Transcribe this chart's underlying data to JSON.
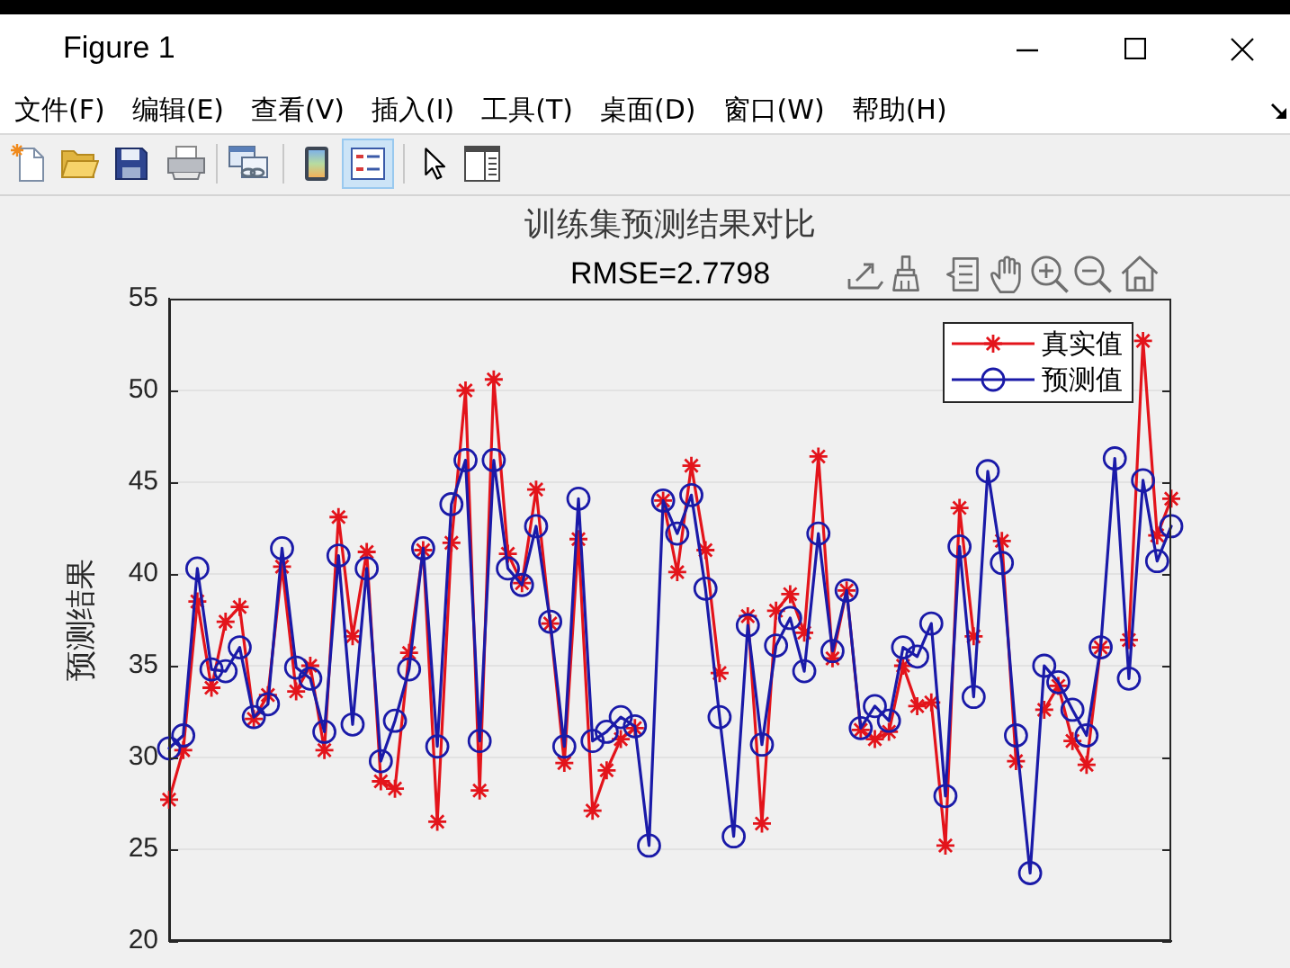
{
  "chart_data": {
    "type": "line",
    "title": "训练集预测结果对比",
    "subtitle": "RMSE=2.7798",
    "ylabel": "预测结果",
    "annotations": [
      "Figure 1",
      "文件(F)",
      "编辑(E)",
      "查看(V)",
      "插入(I)",
      "工具(T)",
      "桌面(D)",
      "窗口(W)",
      "帮助(H)"
    ],
    "categories": [
      null,
      null,
      null,
      null,
      null,
      null,
      null,
      null,
      null,
      null,
      null,
      null,
      null,
      null,
      null,
      null,
      null,
      null,
      null,
      null,
      null,
      null,
      null,
      null,
      null,
      null,
      null,
      null,
      null,
      null,
      null,
      null,
      null,
      null,
      null,
      null,
      null,
      null,
      null,
      null,
      null,
      null,
      null,
      null,
      null,
      null,
      null,
      null,
      null,
      null,
      null,
      null,
      null,
      null,
      null,
      null,
      null,
      null,
      null,
      null,
      null,
      null,
      null,
      null,
      null,
      null,
      null,
      null,
      null,
      null,
      null,
      null
    ],
    "series": [
      {
        "name": "真实值",
        "color": "#e3141b",
        "marker": "cross",
        "values": [
          27.7,
          30.4,
          38.5,
          33.8,
          37.4,
          38.2,
          32.1,
          33.4,
          40.4,
          33.6,
          35,
          30.4,
          43.1,
          36.6,
          41.2,
          28.7,
          28.3,
          35.7,
          41.3,
          26.5,
          41.7,
          50,
          28.2,
          50.6,
          41.1,
          39.5,
          44.6,
          37.3,
          29.7,
          41.9,
          27.1,
          29.3,
          31,
          31.6,
          null,
          44,
          40.1,
          45.9,
          41.3,
          34.6,
          null,
          37.7,
          26.4,
          38,
          38.9,
          36.8,
          46.4,
          35.4,
          39.1,
          31.5,
          31,
          31.4,
          35,
          32.8,
          33,
          25.2,
          43.6,
          36.6,
          null,
          41.8,
          29.8,
          null,
          32.6,
          33.9,
          30.9,
          29.6,
          36,
          null,
          36.4,
          52.7,
          42.1,
          44.1
        ]
      },
      {
        "name": "预测值",
        "color": "#1a1aa8",
        "marker": "circle",
        "values": [
          30.5,
          31.2,
          40.3,
          34.8,
          34.7,
          36,
          32.2,
          32.9,
          41.4,
          34.9,
          34.3,
          31.4,
          41,
          31.8,
          40.3,
          29.8,
          32,
          34.8,
          41.4,
          30.6,
          43.8,
          46.2,
          30.9,
          46.2,
          40.3,
          39.4,
          42.6,
          37.4,
          30.6,
          44.1,
          30.9,
          31.4,
          32.2,
          31.7,
          25.2,
          44,
          42.2,
          44.3,
          39.2,
          32.2,
          25.7,
          37.2,
          30.7,
          36.1,
          37.6,
          34.7,
          42.2,
          35.8,
          39.1,
          31.6,
          32.8,
          32,
          36,
          35.5,
          37.3,
          27.9,
          41.5,
          33.3,
          45.6,
          40.6,
          31.2,
          23.7,
          35,
          34.1,
          32.6,
          31.2,
          36,
          46.3,
          34.3,
          45.1,
          40.7,
          42.6
        ]
      }
    ],
    "ylim": [
      20,
      55
    ],
    "yticks": [
      20,
      25,
      30,
      35,
      40,
      45,
      50,
      55
    ],
    "grid": "y",
    "legend": "top right",
    "tick_labels": "y",
    "line_style": "solid"
  }
}
